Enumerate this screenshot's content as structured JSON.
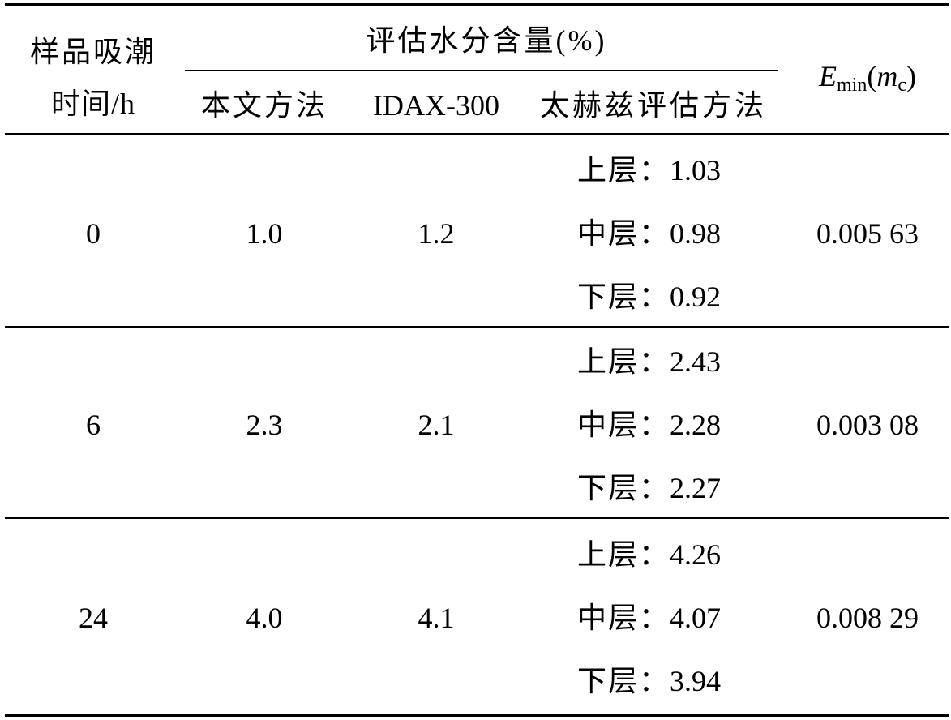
{
  "header": {
    "time_line1": "样品吸潮",
    "time_line2": "时间/h",
    "moisture_group": "评估水分含量(%)",
    "methods": [
      "本文方法",
      "IDAX-300",
      "太赫兹评估方法"
    ],
    "emin_symbol": "E",
    "emin_sub": "min",
    "emin_paren_open": "(",
    "emin_var": "m",
    "emin_var_sub": "c",
    "emin_paren_close": ")"
  },
  "rows": [
    {
      "time": "0",
      "this_method": "1.0",
      "idax": "1.2",
      "thz": [
        {
          "layer": "上层：",
          "value": "1.03"
        },
        {
          "layer": "中层：",
          "value": "0.98"
        },
        {
          "layer": "下层：",
          "value": "0.92"
        }
      ],
      "emin": "0.005 63"
    },
    {
      "time": "6",
      "this_method": "2.3",
      "idax": "2.1",
      "thz": [
        {
          "layer": "上层：",
          "value": "2.43"
        },
        {
          "layer": "中层：",
          "value": "2.28"
        },
        {
          "layer": "下层：",
          "value": "2.27"
        }
      ],
      "emin": "0.003 08"
    },
    {
      "time": "24",
      "this_method": "4.0",
      "idax": "4.1",
      "thz": [
        {
          "layer": "上层：",
          "value": "4.26"
        },
        {
          "layer": "中层：",
          "value": "4.07"
        },
        {
          "layer": "下层：",
          "value": "3.94"
        }
      ],
      "emin": "0.008 29"
    }
  ]
}
